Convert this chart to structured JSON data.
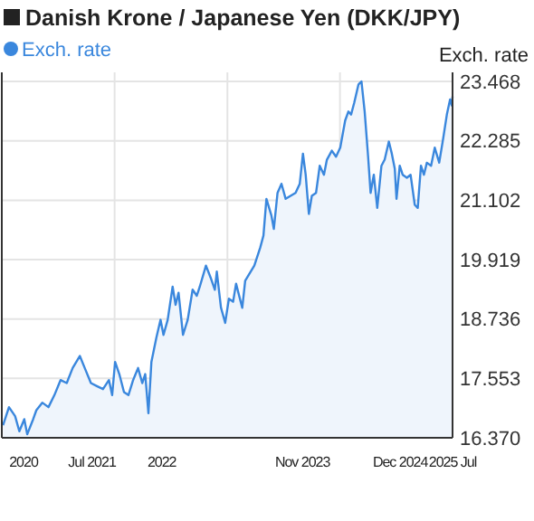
{
  "chart_data": {
    "type": "area",
    "title": "Danish Krone / Japanese Yen (DKK/JPY)",
    "ylabel": "Exch. rate",
    "legend": "top left",
    "grid": true,
    "xlim": [
      "2020-07-01",
      "2025-07-01"
    ],
    "xticks": [
      {
        "value": "2020-09-27",
        "label": "2020"
      },
      {
        "value": "2021-07-01",
        "label": "Jul 2021"
      },
      {
        "value": "2021-10-01",
        "label": null
      },
      {
        "value": "2022-04-10",
        "label": "2022"
      },
      {
        "value": "2023-01-01",
        "label": null
      },
      {
        "value": "2023-11-01",
        "label": "Nov 2023"
      },
      {
        "value": "2024-04-01",
        "label": null
      },
      {
        "value": "2024-12-01",
        "label": "Dec 2024"
      },
      {
        "value": "2025-07-01",
        "label": "2025 Jul"
      }
    ],
    "ylim": [
      16.37,
      23.65
    ],
    "yticks": [
      {
        "value": 16.37,
        "label": "16.370"
      },
      17.553,
      18.736,
      19.919,
      21.102,
      22.285,
      23.468
    ],
    "series": [
      {
        "name": "Exch. rate",
        "color": "#3a87dd",
        "x": [
          "2020-07-06",
          "2020-07-30",
          "2020-08-24",
          "2020-09-10",
          "2020-09-30",
          "2020-10-12",
          "2020-11-05",
          "2020-11-18",
          "2020-12-12",
          "2021-01-06",
          "2021-01-30",
          "2021-02-24",
          "2021-03-21",
          "2021-04-14",
          "2021-05-13",
          "2021-06-02",
          "2021-06-27",
          "2021-07-21",
          "2021-08-15",
          "2021-09-08",
          "2021-09-21",
          "2021-10-03",
          "2021-10-20",
          "2021-11-08",
          "2021-11-26",
          "2021-12-15",
          "2022-01-04",
          "2022-01-21",
          "2022-02-02",
          "2022-02-15",
          "2022-02-27",
          "2022-03-19",
          "2022-04-05",
          "2022-04-17",
          "2022-05-04",
          "2022-05-24",
          "2022-06-05",
          "2022-06-17",
          "2022-07-05",
          "2022-07-24",
          "2022-08-13",
          "2022-08-30",
          "2022-09-11",
          "2022-10-06",
          "2022-10-25",
          "2022-11-11",
          "2022-11-19",
          "2022-12-06",
          "2022-12-23",
          "2023-01-07",
          "2023-01-24",
          "2023-02-05",
          "2023-03-02",
          "2023-03-14",
          "2023-04-20",
          "2023-05-14",
          "2023-05-27",
          "2023-06-08",
          "2023-06-28",
          "2023-07-08",
          "2023-07-23",
          "2023-08-08",
          "2023-08-25",
          "2023-09-14",
          "2023-10-04",
          "2023-10-21",
          "2023-11-03",
          "2023-11-14",
          "2023-11-27",
          "2023-12-09",
          "2023-12-26",
          "2024-01-10",
          "2024-01-27",
          "2024-02-08",
          "2024-02-28",
          "2024-03-16",
          "2024-04-02",
          "2024-04-22",
          "2024-05-05",
          "2024-05-16",
          "2024-05-29",
          "2024-06-15",
          "2024-06-27",
          "2024-07-10",
          "2024-07-24",
          "2024-08-03",
          "2024-08-16",
          "2024-08-30",
          "2024-09-16",
          "2024-09-29",
          "2024-10-16",
          "2024-10-28",
          "2024-11-09",
          "2024-11-16",
          "2024-11-29",
          "2024-12-11",
          "2024-12-28",
          "2025-01-12",
          "2025-01-29",
          "2025-02-10",
          "2025-02-23",
          "2025-03-07",
          "2025-03-19",
          "2025-04-05",
          "2025-04-20",
          "2025-05-08",
          "2025-05-24",
          "2025-06-08",
          "2025-06-21",
          "2025-06-28",
          "2025-07-01"
        ],
        "values": [
          16.62,
          16.98,
          16.8,
          16.5,
          16.74,
          16.44,
          16.74,
          16.92,
          17.07,
          16.98,
          17.22,
          17.52,
          17.46,
          17.76,
          18.0,
          17.76,
          17.46,
          17.4,
          17.34,
          17.52,
          17.22,
          17.88,
          17.64,
          17.28,
          17.22,
          17.52,
          17.76,
          17.46,
          17.64,
          16.86,
          17.88,
          18.36,
          18.72,
          18.42,
          18.72,
          19.38,
          19.02,
          19.26,
          18.42,
          18.72,
          19.32,
          19.2,
          19.38,
          19.8,
          19.56,
          19.32,
          19.68,
          18.96,
          18.66,
          19.14,
          19.08,
          19.44,
          18.96,
          19.5,
          19.8,
          20.16,
          20.4,
          21.13,
          20.8,
          20.53,
          21.25,
          21.43,
          21.13,
          21.19,
          21.25,
          21.43,
          22.03,
          21.61,
          20.83,
          21.19,
          21.25,
          21.79,
          21.61,
          21.91,
          22.09,
          21.97,
          22.15,
          22.69,
          22.87,
          22.81,
          23.05,
          23.41,
          23.47,
          22.87,
          21.97,
          21.25,
          21.61,
          20.95,
          21.79,
          21.91,
          22.27,
          22.03,
          21.73,
          21.13,
          21.79,
          21.61,
          21.55,
          21.61,
          21.01,
          20.95,
          21.79,
          21.61,
          21.85,
          21.79,
          22.15,
          21.85,
          22.33,
          22.81,
          23.11,
          22.99,
          23.17
        ]
      }
    ]
  }
}
